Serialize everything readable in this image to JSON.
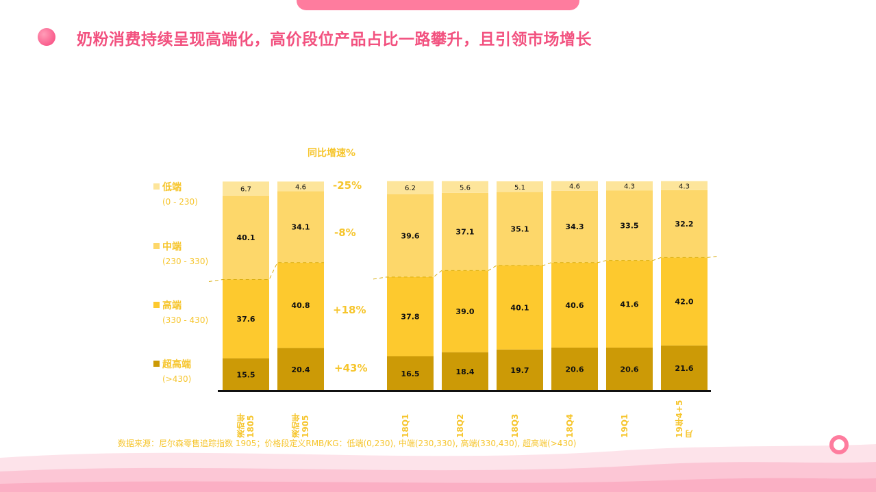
{
  "title": "奶粉消费持续呈现高端化，高价段位产品占比一路攀升，且引领市场增长",
  "growth_title": "同比增速%",
  "legend": [
    {
      "label": "低端",
      "range": "(0 - 230)",
      "color": "#FDE59B"
    },
    {
      "label": "中端",
      "range": "(230 - 330)",
      "color": "#FDD76A"
    },
    {
      "label": "高端",
      "range": "(330 - 430)",
      "color": "#FDC92E"
    },
    {
      "label": "超高端",
      "range": "(>430)",
      "color": "#CC9A06"
    }
  ],
  "growth": [
    "-25%",
    "-8%",
    "+18%",
    "+43%"
  ],
  "footnote": "数据来源：尼尔森零售追踪指数 1905；价格段定义RMB/KG：低端(0,230), 中端(230,330), 高端(330,430), 超高端(>430)",
  "chart_data": {
    "type": "bar",
    "stacked": true,
    "categories": [
      "滚动年 1805",
      "滚动年 1905",
      "18Q1",
      "18Q2",
      "18Q3",
      "18Q4",
      "19Q1",
      "19年4+5月"
    ],
    "series": [
      {
        "name": "超高端",
        "color": "#CC9A06",
        "values": [
          15.5,
          20.4,
          16.5,
          18.4,
          19.7,
          20.6,
          20.6,
          21.6
        ]
      },
      {
        "name": "高端",
        "color": "#FDC92E",
        "values": [
          37.6,
          40.8,
          37.8,
          39.0,
          40.1,
          40.6,
          41.6,
          42.0
        ]
      },
      {
        "name": "中端",
        "color": "#FDD76A",
        "values": [
          40.1,
          34.1,
          39.6,
          37.1,
          35.1,
          34.3,
          33.5,
          32.2
        ]
      },
      {
        "name": "低端",
        "color": "#FDE59B",
        "values": [
          6.7,
          4.6,
          6.2,
          5.6,
          5.1,
          4.6,
          4.3,
          4.3
        ]
      }
    ],
    "ylim": [
      0,
      100
    ],
    "grid": false,
    "legend": "left"
  }
}
